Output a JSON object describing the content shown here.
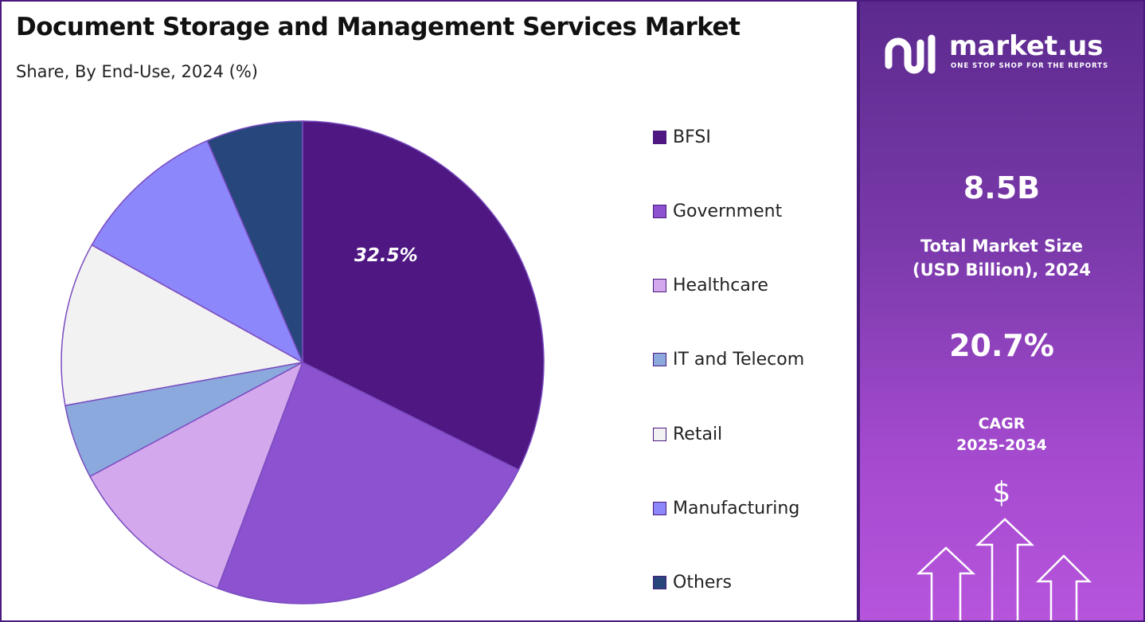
{
  "header": {
    "title": "Document Storage and Management Services Market",
    "subtitle": "Share, By End-Use, 2024 (%)"
  },
  "chart_data": {
    "type": "pie",
    "title": "Document Storage and Management Services Market",
    "subtitle": "Share, By End-Use, 2024 (%)",
    "unit": "%",
    "categories": [
      "BFSI",
      "Government",
      "Healthcare",
      "IT and Telecom",
      "Retail",
      "Manufacturing",
      "Others"
    ],
    "values": [
      32.5,
      23.5,
      11.5,
      5.0,
      11.0,
      10.5,
      6.5
    ],
    "colors": [
      "#4e1782",
      "#8c52cf",
      "#d3a8ed",
      "#8ba9dc",
      "#f2f2f2",
      "#8c87fa",
      "#27467c"
    ],
    "data_labels": [
      "32.5%",
      "",
      "",
      "",
      "",
      "",
      ""
    ],
    "legend_position": "right",
    "start_angle_deg": 0,
    "direction": "clockwise"
  },
  "sidebar": {
    "brand_name": "market.us",
    "brand_tagline": "ONE STOP SHOP FOR THE REPORTS",
    "market_size_value": "8.5B",
    "market_size_label_line1": "Total Market Size",
    "market_size_label_line2": "(USD Billion), 2024",
    "cagr_value": "20.7%",
    "cagr_label_line1": "CAGR",
    "cagr_label_line2": "2025-2034",
    "currency_symbol": "$",
    "icons": [
      "market-us-logo-icon",
      "growth-arrows-icon"
    ]
  },
  "colors": {
    "accent": "#4a1a7e",
    "panel_top": "#5c2a8e",
    "panel_bottom": "#b654dc"
  }
}
